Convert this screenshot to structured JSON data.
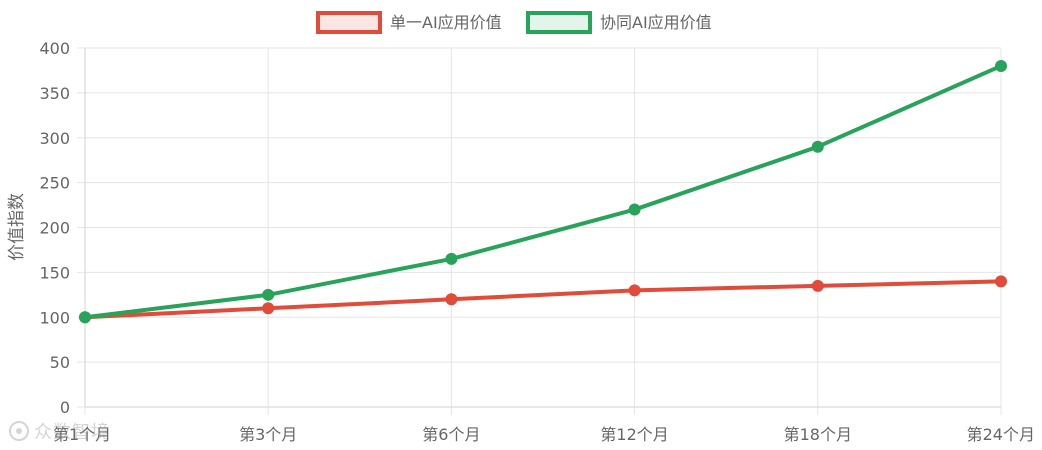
{
  "chart_data": {
    "type": "line",
    "categories": [
      "第1个月",
      "第3个月",
      "第6个月",
      "第12个月",
      "第18个月",
      "第24个月"
    ],
    "series": [
      {
        "name": "单一AI应用价值",
        "values": [
          100,
          110,
          120,
          130,
          135,
          140
        ],
        "color": "#e04b3a",
        "fill": "#fbe6e4"
      },
      {
        "name": "协同AI应用价值",
        "values": [
          100,
          125,
          165,
          220,
          290,
          380
        ],
        "color": "#27a35a",
        "fill": "#e3f5ea"
      }
    ],
    "ylabel": "价值指数",
    "xlabel": "",
    "ylim": [
      0,
      400
    ],
    "yticks": [
      0,
      50,
      100,
      150,
      200,
      250,
      300,
      350,
      400
    ],
    "grid": true,
    "legend": "top-center"
  },
  "watermark": {
    "text": "众数智境"
  }
}
